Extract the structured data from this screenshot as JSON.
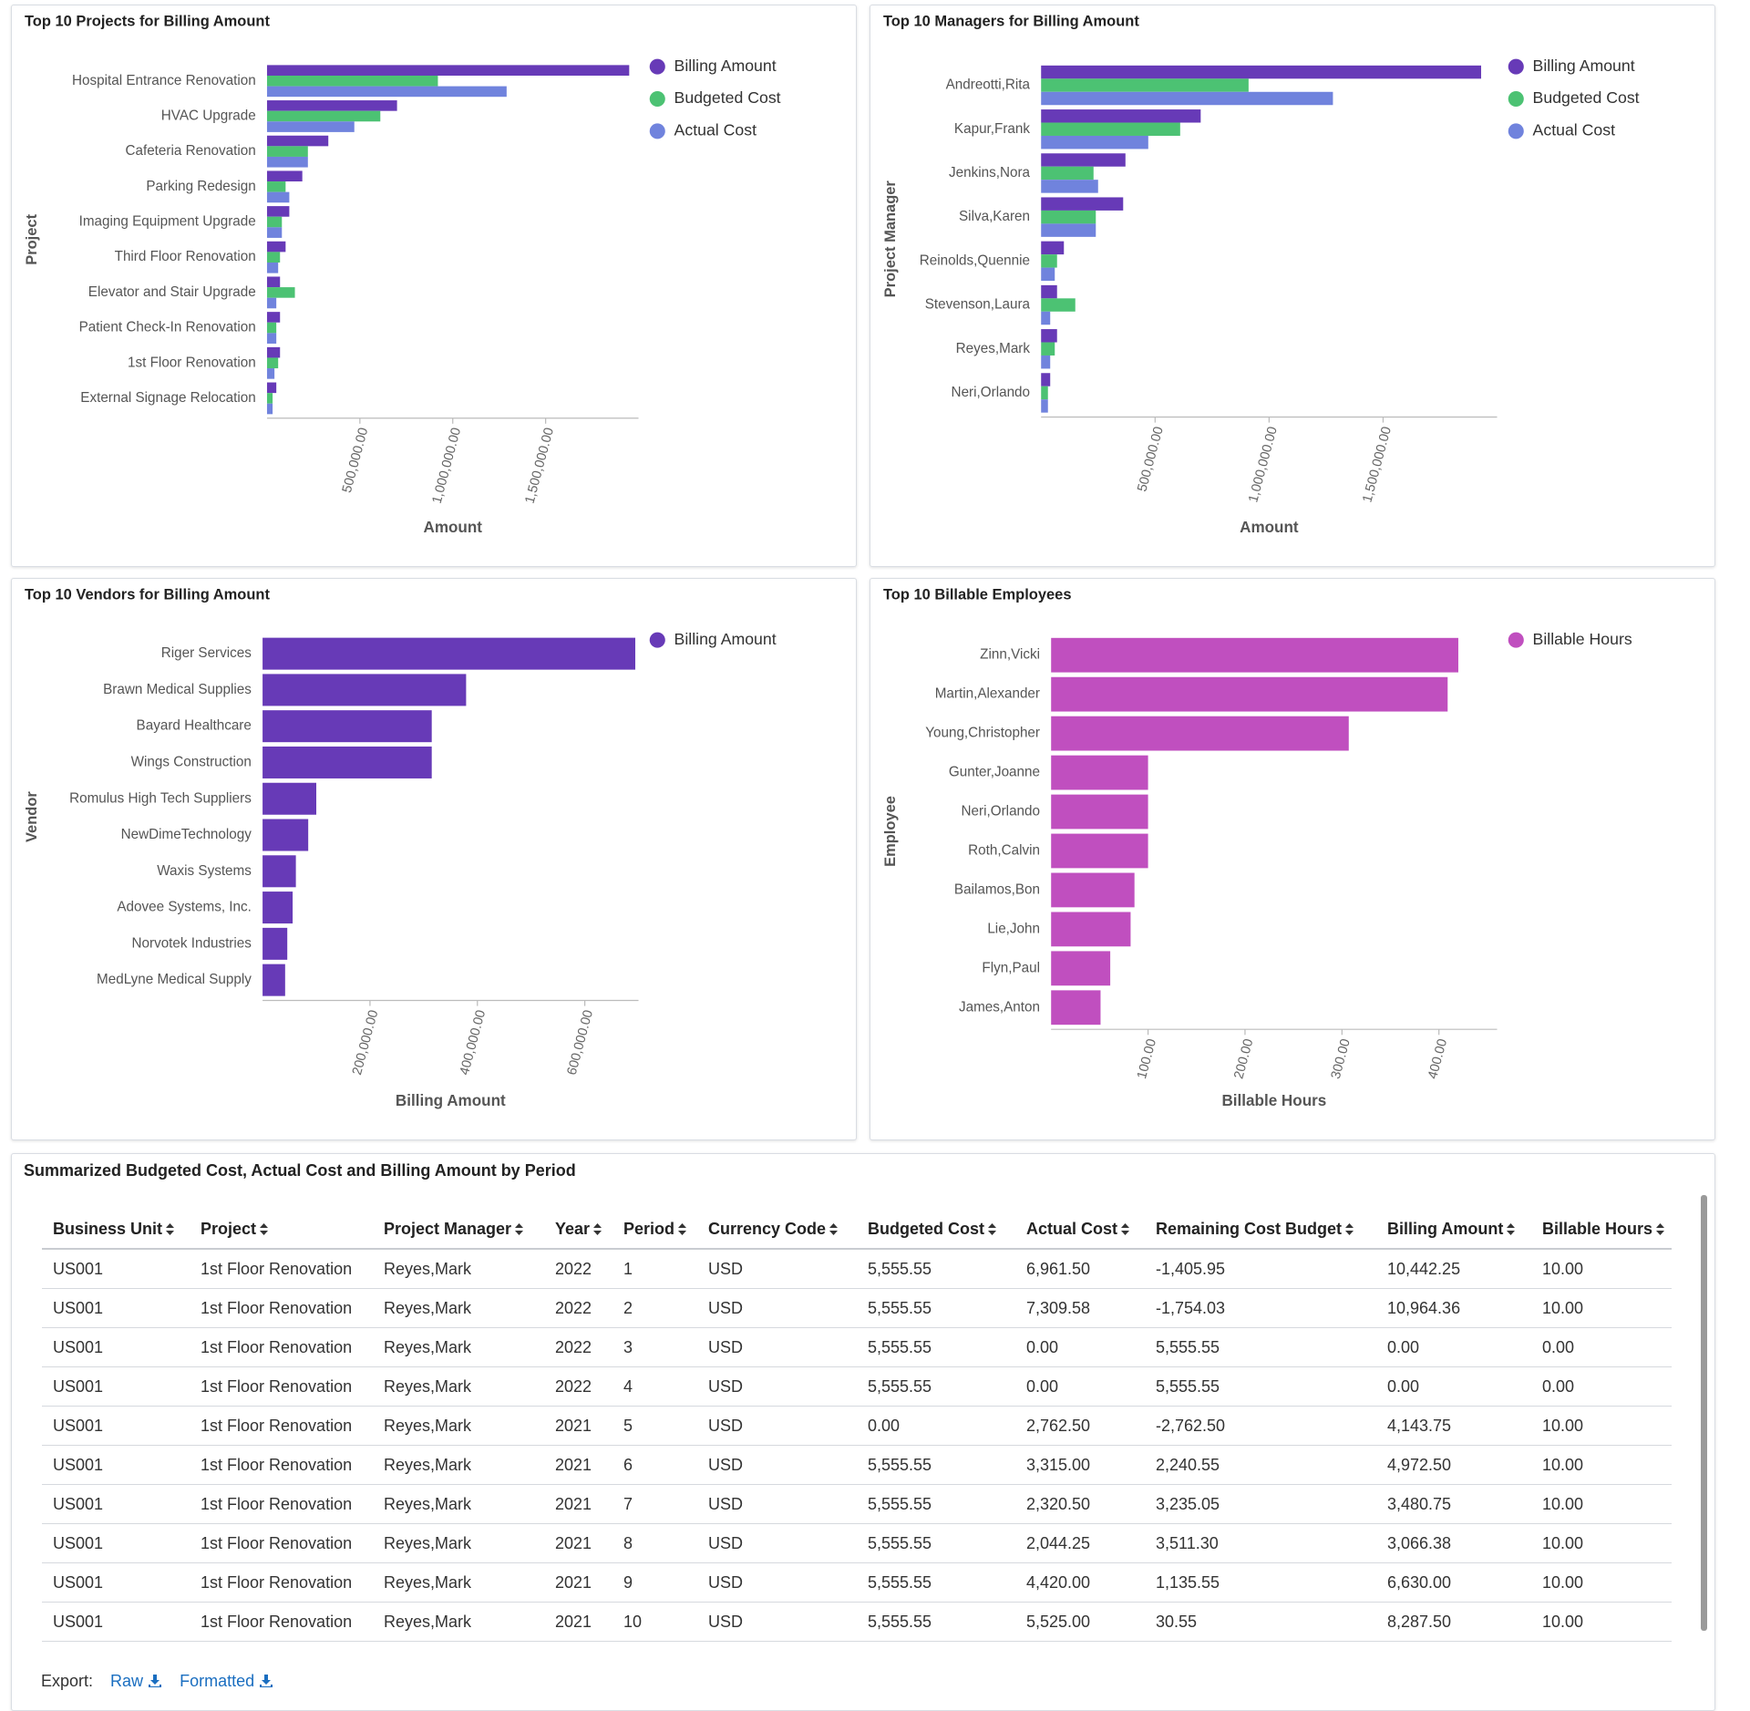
{
  "chart_data": [
    {
      "type": "bar",
      "orientation": "horizontal",
      "title": "Top 10 Projects for Billing Amount",
      "x_label": "Amount",
      "y_label": "Project",
      "categories": [
        "Hospital Entrance Renovation",
        "HVAC Upgrade",
        "Cafeteria Renovation",
        "Parking Redesign",
        "Imaging Equipment Upgrade",
        "Third Floor Renovation",
        "Elevator and Stair Upgrade",
        "Patient Check-In Renovation",
        "1st Floor Renovation",
        "External Signage Relocation"
      ],
      "series": [
        {
          "name": "Billing Amount",
          "color": "#673ab7",
          "values": [
            1950000,
            700000,
            330000,
            190000,
            120000,
            100000,
            70000,
            70000,
            70000,
            50000
          ]
        },
        {
          "name": "Budgeted Cost",
          "color": "#4cc273",
          "values": [
            920000,
            610000,
            220000,
            100000,
            80000,
            70000,
            150000,
            50000,
            60000,
            30000
          ]
        },
        {
          "name": "Actual Cost",
          "color": "#7083dd",
          "values": [
            1290000,
            470000,
            220000,
            120000,
            80000,
            60000,
            50000,
            50000,
            40000,
            30000
          ]
        }
      ],
      "xlim": [
        0,
        2000000
      ],
      "xticks": [
        {
          "value": 500000,
          "label": "500,000.00"
        },
        {
          "value": 1000000,
          "label": "1,000,000.00"
        },
        {
          "value": 1500000,
          "label": "1,500,000.00"
        }
      ],
      "legend": "right"
    },
    {
      "type": "bar",
      "orientation": "horizontal",
      "title": "Top 10 Managers for Billing Amount",
      "x_label": "Amount",
      "y_label": "Project Manager",
      "categories": [
        "Andreotti,Rita",
        "Kapur,Frank",
        "Jenkins,Nora",
        "Silva,Karen",
        "Reinolds,Quennie",
        "Stevenson,Laura",
        "Reyes,Mark",
        "Neri,Orlando"
      ],
      "series": [
        {
          "name": "Billing Amount",
          "color": "#673ab7",
          "values": [
            1930000,
            700000,
            370000,
            360000,
            100000,
            70000,
            70000,
            40000
          ]
        },
        {
          "name": "Budgeted Cost",
          "color": "#4cc273",
          "values": [
            910000,
            610000,
            230000,
            240000,
            70000,
            150000,
            60000,
            30000
          ]
        },
        {
          "name": "Actual Cost",
          "color": "#7083dd",
          "values": [
            1280000,
            470000,
            250000,
            240000,
            60000,
            40000,
            40000,
            30000
          ]
        }
      ],
      "xlim": [
        0,
        2000000
      ],
      "xticks": [
        {
          "value": 500000,
          "label": "500,000.00"
        },
        {
          "value": 1000000,
          "label": "1,000,000.00"
        },
        {
          "value": 1500000,
          "label": "1,500,000.00"
        }
      ],
      "legend": "right"
    },
    {
      "type": "bar",
      "orientation": "horizontal",
      "title": "Top 10 Vendors for Billing Amount",
      "x_label": "Billing Amount",
      "y_label": "Vendor",
      "categories": [
        "Riger Services",
        "Brawn Medical Supplies",
        "Bayard Healthcare",
        "Wings Construction",
        "Romulus High Tech Suppliers",
        "NewDimeTechnology",
        "Waxis Systems",
        "Adovee Systems, Inc.",
        "Norvotek Industries",
        "MedLyne Medical Supply"
      ],
      "series": [
        {
          "name": "Billing Amount",
          "color": "#673ab7",
          "values": [
            694000,
            379000,
            315000,
            315000,
            100000,
            85000,
            62000,
            56000,
            46000,
            42000
          ]
        }
      ],
      "xlim": [
        0,
        700000
      ],
      "xticks": [
        {
          "value": 200000,
          "label": "200,000.00"
        },
        {
          "value": 400000,
          "label": "400,000.00"
        },
        {
          "value": 600000,
          "label": "600,000.00"
        }
      ],
      "legend": "right"
    },
    {
      "type": "bar",
      "orientation": "horizontal",
      "title": "Top 10 Billable Employees",
      "x_label": "Billable Hours",
      "y_label": "Employee",
      "categories": [
        "Zinn,Vicki",
        "Martin,Alexander",
        "Young,Christopher",
        "Gunter,Joanne",
        "Neri,Orlando",
        "Roth,Calvin",
        "Bailamos,Bon",
        "Lie,John",
        "Flyn,Paul",
        "James,Anton"
      ],
      "series": [
        {
          "name": "Billable Hours",
          "color": "#c04fbf",
          "values": [
            420,
            409,
            307,
            100,
            100,
            100,
            86,
            82,
            61,
            51
          ]
        }
      ],
      "xlim": [
        0,
        460
      ],
      "xticks": [
        {
          "value": 100,
          "label": "100.00"
        },
        {
          "value": 200,
          "label": "200.00"
        },
        {
          "value": 300,
          "label": "300.00"
        },
        {
          "value": 400,
          "label": "400.00"
        }
      ],
      "legend": "right"
    }
  ],
  "table": {
    "title": "Summarized Budgeted Cost, Actual Cost and Billing Amount by Period",
    "columns": [
      "Business Unit",
      "Project",
      "Project Manager",
      "Year",
      "Period",
      "Currency Code",
      "Budgeted Cost",
      "Actual Cost",
      "Remaining Cost Budget",
      "Billing Amount",
      "Billable Hours"
    ],
    "rows": [
      [
        "US001",
        "1st Floor Renovation",
        "Reyes,Mark",
        "2022",
        "1",
        "USD",
        "5,555.55",
        "6,961.50",
        "-1,405.95",
        "10,442.25",
        "10.00"
      ],
      [
        "US001",
        "1st Floor Renovation",
        "Reyes,Mark",
        "2022",
        "2",
        "USD",
        "5,555.55",
        "7,309.58",
        "-1,754.03",
        "10,964.36",
        "10.00"
      ],
      [
        "US001",
        "1st Floor Renovation",
        "Reyes,Mark",
        "2022",
        "3",
        "USD",
        "5,555.55",
        "0.00",
        "5,555.55",
        "0.00",
        "0.00"
      ],
      [
        "US001",
        "1st Floor Renovation",
        "Reyes,Mark",
        "2022",
        "4",
        "USD",
        "5,555.55",
        "0.00",
        "5,555.55",
        "0.00",
        "0.00"
      ],
      [
        "US001",
        "1st Floor Renovation",
        "Reyes,Mark",
        "2021",
        "5",
        "USD",
        "0.00",
        "2,762.50",
        "-2,762.50",
        "4,143.75",
        "10.00"
      ],
      [
        "US001",
        "1st Floor Renovation",
        "Reyes,Mark",
        "2021",
        "6",
        "USD",
        "5,555.55",
        "3,315.00",
        "2,240.55",
        "4,972.50",
        "10.00"
      ],
      [
        "US001",
        "1st Floor Renovation",
        "Reyes,Mark",
        "2021",
        "7",
        "USD",
        "5,555.55",
        "2,320.50",
        "3,235.05",
        "3,480.75",
        "10.00"
      ],
      [
        "US001",
        "1st Floor Renovation",
        "Reyes,Mark",
        "2021",
        "8",
        "USD",
        "5,555.55",
        "2,044.25",
        "3,511.30",
        "3,066.38",
        "10.00"
      ],
      [
        "US001",
        "1st Floor Renovation",
        "Reyes,Mark",
        "2021",
        "9",
        "USD",
        "5,555.55",
        "4,420.00",
        "1,135.55",
        "6,630.00",
        "10.00"
      ],
      [
        "US001",
        "1st Floor Renovation",
        "Reyes,Mark",
        "2021",
        "10",
        "USD",
        "5,555.55",
        "5,525.00",
        "30.55",
        "8,287.50",
        "10.00"
      ]
    ]
  },
  "export": {
    "label": "Export:",
    "links": [
      "Raw",
      "Formatted"
    ]
  }
}
